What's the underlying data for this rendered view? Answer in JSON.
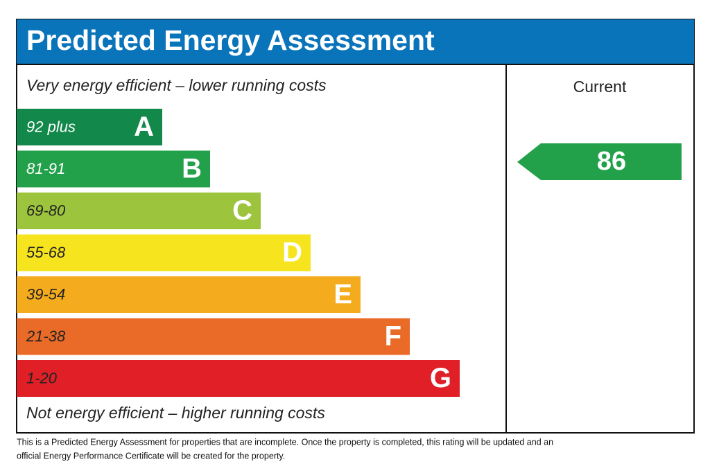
{
  "header": {
    "title": "Predicted Energy Assessment"
  },
  "top_note": "Very energy efficient – lower running costs",
  "bottom_note": "Not energy efficient – higher running costs",
  "bands": [
    {
      "range": "92 plus",
      "letter": "A",
      "color": "#12884a"
    },
    {
      "range": "81-91",
      "letter": "B",
      "color": "#22a14a"
    },
    {
      "range": "69-80",
      "letter": "C",
      "color": "#9cc43d"
    },
    {
      "range": "55-68",
      "letter": "D",
      "color": "#f5e41e"
    },
    {
      "range": "39-54",
      "letter": "E",
      "color": "#f4ac1e"
    },
    {
      "range": "21-38",
      "letter": "F",
      "color": "#ea6a27"
    },
    {
      "range": "1-20",
      "letter": "G",
      "color": "#e01f27"
    }
  ],
  "current": {
    "label": "Current",
    "value": 86,
    "color": "#22a14a"
  },
  "footnote": [
    "This is a Predicted Energy Assessment for properties that are incomplete. Once the property is completed, this rating will be updated and an",
    "official Energy Performance Certificate will be created for the property."
  ]
}
